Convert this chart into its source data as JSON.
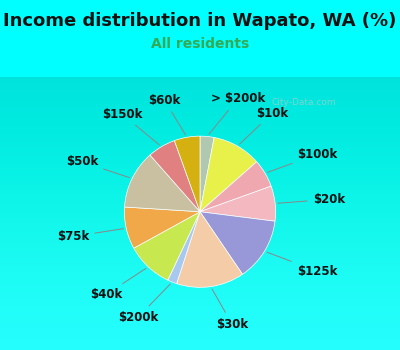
{
  "title": "Income distribution in Wapato, WA (%)",
  "subtitle": "All residents",
  "title_color": "#111111",
  "subtitle_color": "#33aa55",
  "background_color": "#00ffff",
  "chart_bg_color": "#dff0e8",
  "watermark": "City-Data.com",
  "labels": [
    "> $200k",
    "$10k",
    "$100k",
    "$20k",
    "$125k",
    "$30k",
    "$200k",
    "$40k",
    "$75k",
    "$50k",
    "$150k",
    "$60k"
  ],
  "sizes": [
    3.0,
    10.5,
    6.0,
    7.5,
    13.5,
    14.5,
    2.0,
    10.0,
    9.0,
    12.5,
    6.0,
    5.5
  ],
  "colors": [
    "#b0c8b0",
    "#e8f04a",
    "#f0a8b0",
    "#f4b8c0",
    "#9898d8",
    "#f5cca8",
    "#a8c8f0",
    "#c8e850",
    "#f0a848",
    "#c8c0a0",
    "#e08080",
    "#d4b010"
  ],
  "startangle": 90,
  "label_fontsize": 8.5,
  "title_fontsize": 13,
  "subtitle_fontsize": 10
}
